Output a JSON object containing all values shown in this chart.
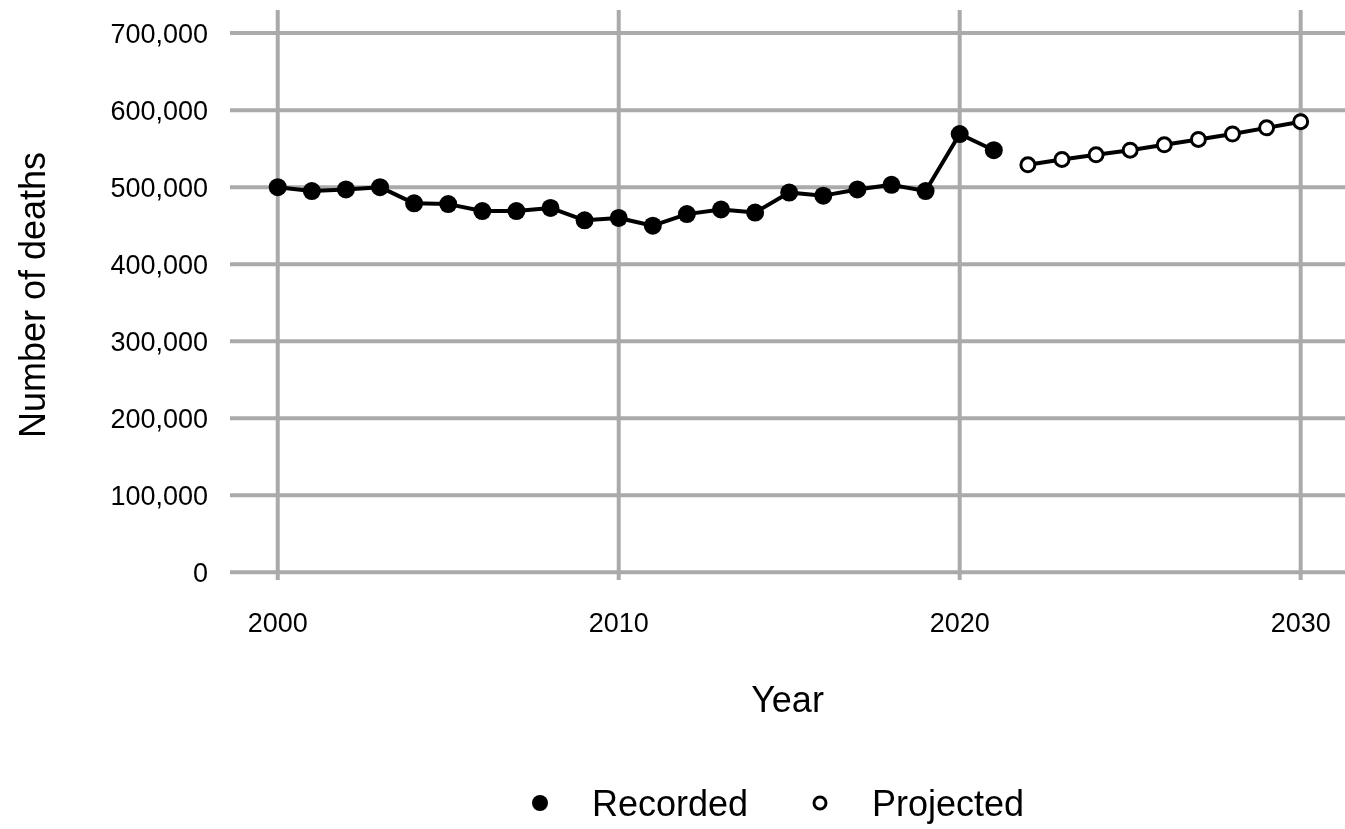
{
  "chart_data": {
    "type": "line",
    "xlabel": "Year",
    "ylabel": "Number of deaths",
    "xlim": [
      1998.6,
      2031.3
    ],
    "xticks": [
      2000,
      2010,
      2020,
      2030
    ],
    "ylim": [
      -10000,
      730000
    ],
    "yticks": [
      {
        "value": 0,
        "label": "0"
      },
      {
        "value": 100000,
        "label": "100,000"
      },
      {
        "value": 200000,
        "label": "200,000"
      },
      {
        "value": 300000,
        "label": "300,000"
      },
      {
        "value": 400000,
        "label": "400,000"
      },
      {
        "value": 500000,
        "label": "500,000"
      },
      {
        "value": 600000,
        "label": "600,000"
      },
      {
        "value": 700000,
        "label": "700,000"
      }
    ],
    "grid": true,
    "legend": "bottom",
    "marker": "circle",
    "line_style": "solid",
    "series": [
      {
        "name": "Recorded",
        "color": "#000000",
        "x": [
          2000,
          2001,
          2002,
          2003,
          2004,
          2005,
          2006,
          2007,
          2008,
          2009,
          2010,
          2011,
          2012,
          2013,
          2014,
          2015,
          2016,
          2017,
          2018,
          2019,
          2020,
          2021
        ],
        "values": [
          500000,
          495000,
          497000,
          500000,
          479000,
          478000,
          469000,
          469000,
          473000,
          457000,
          460000,
          450000,
          465000,
          471000,
          467000,
          493000,
          489000,
          497000,
          503000,
          495000,
          569000,
          548000
        ]
      },
      {
        "name": "Projected",
        "color": "#000000",
        "x": [
          2022,
          2023,
          2024,
          2025,
          2026,
          2027,
          2028,
          2029,
          2030
        ],
        "values": [
          529000,
          536000,
          542000,
          548000,
          555000,
          562000,
          569000,
          577000,
          585000
        ]
      }
    ]
  }
}
